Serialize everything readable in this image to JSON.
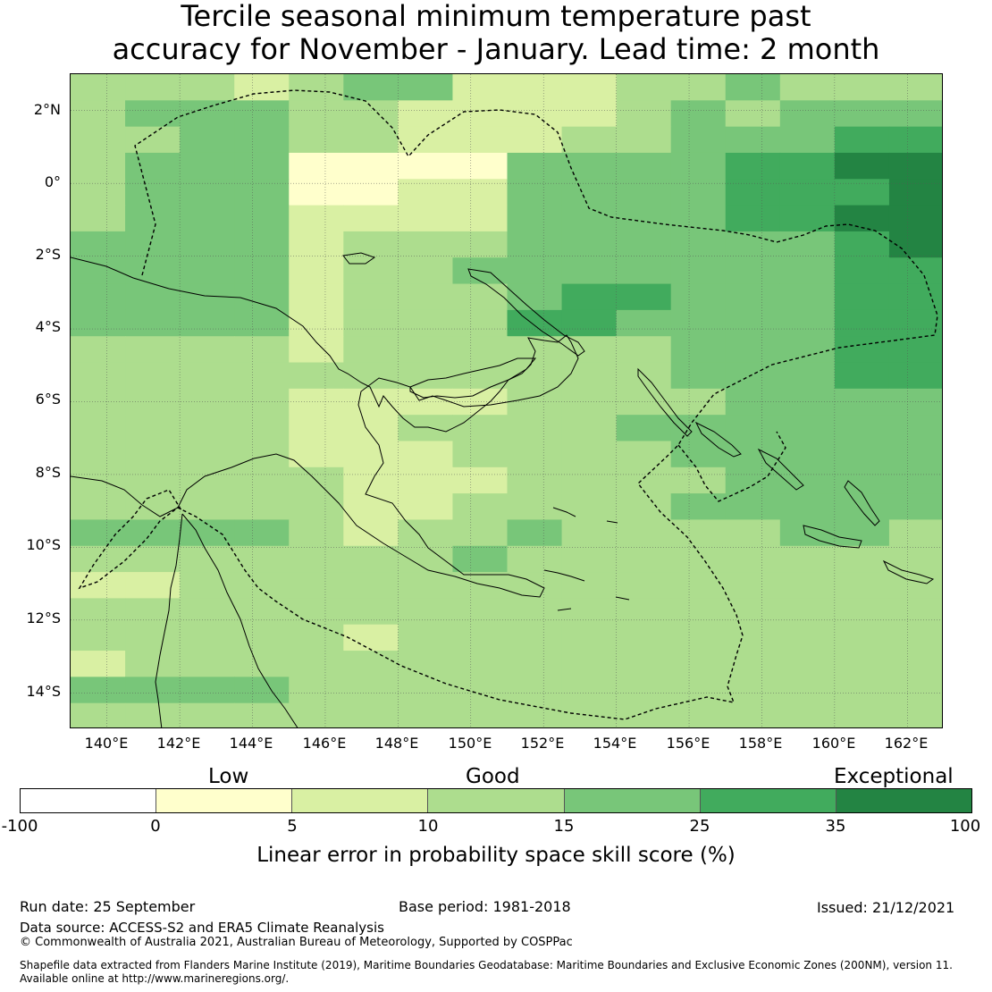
{
  "title": {
    "line1": "Tercile seasonal minimum temperature past",
    "line2": "accuracy for November - January. Lead time: 2 month"
  },
  "map": {
    "lat_labels": [
      "2°N",
      "0°",
      "2°S",
      "4°S",
      "6°S",
      "8°S",
      "10°S",
      "12°S",
      "14°S"
    ],
    "lon_labels": [
      "140°E",
      "142°E",
      "144°E",
      "146°E",
      "148°E",
      "150°E",
      "152°E",
      "154°E",
      "156°E",
      "158°E",
      "160°E",
      "162°E"
    ],
    "extent": {
      "lon_min": 139,
      "lon_max": 163,
      "lat_min": -15,
      "lat_max": 3
    },
    "grid_rows": [
      "3332344222334333",
      "3444332222343444",
      "3344332223344455",
      "3444111144445566",
      "3444112244445556",
      "3444222244445566",
      "4444233344444456",
      "4444233444444455",
      "4444233345544455",
      "4444233355444455",
      "3333233333344455",
      "3333333333344455",
      "3333222233334444",
      "3333223333444444",
      "3333222333344444",
      "3333322233334444",
      "3333322333344444",
      "4444323343333443",
      "3333333433333333",
      "2233333333333333",
      "3333333333333333",
      "3333323333333333",
      "2333333333333333",
      "4444333333333333",
      "3333333333333333"
    ]
  },
  "legend": {
    "categories": [
      "Low",
      "Good",
      "Exceptional"
    ],
    "ticks": [
      "-100",
      "0",
      "5",
      "10",
      "15",
      "25",
      "35",
      "100"
    ],
    "colors": [
      "#ffffff",
      "#ffffcc",
      "#d9f0a3",
      "#addd8e",
      "#78c679",
      "#41ab5d",
      "#238443"
    ],
    "label": "Linear error in probability space skill score (%)"
  },
  "footer": {
    "run_date": "Run date: 25 September",
    "base_period": "Base period: 1981-2018",
    "issued": "Issued: 21/12/2021",
    "data_source": "Data source: ACCESS-S2 and ERA5 Climate Reanalysis",
    "copyright": "© Commonwealth of Australia 2021, Australian Bureau of Meteorology, Supported by COSPPac",
    "shapefile1": "Shapefile data extracted from Flanders Marine Institute (2019), Maritime Boundaries Geodatabase: Maritime Boundaries and Exclusive Economic Zones (200NM), version 11.",
    "shapefile2": "Available online at http://www.marineregions.org/."
  }
}
